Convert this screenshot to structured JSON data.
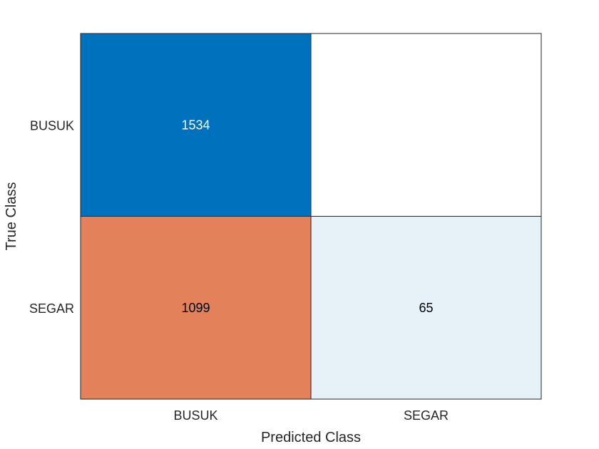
{
  "chart_data": {
    "type": "heatmap",
    "title": "",
    "xlabel": "Predicted Class",
    "ylabel": "True Class",
    "x_categories": [
      "BUSUK",
      "SEGAR"
    ],
    "y_categories": [
      "BUSUK",
      "SEGAR"
    ],
    "values": [
      [
        1534,
        null
      ],
      [
        1099,
        65
      ]
    ],
    "cell_colors": [
      [
        "#0072BD",
        "#FFFFFF"
      ],
      [
        "#E3825A",
        "#E6F1F8"
      ]
    ],
    "cell_text_colors": [
      [
        "#FFFFFF",
        "#000000"
      ],
      [
        "#000000",
        "#000000"
      ]
    ],
    "grid": false,
    "legend": "none"
  }
}
